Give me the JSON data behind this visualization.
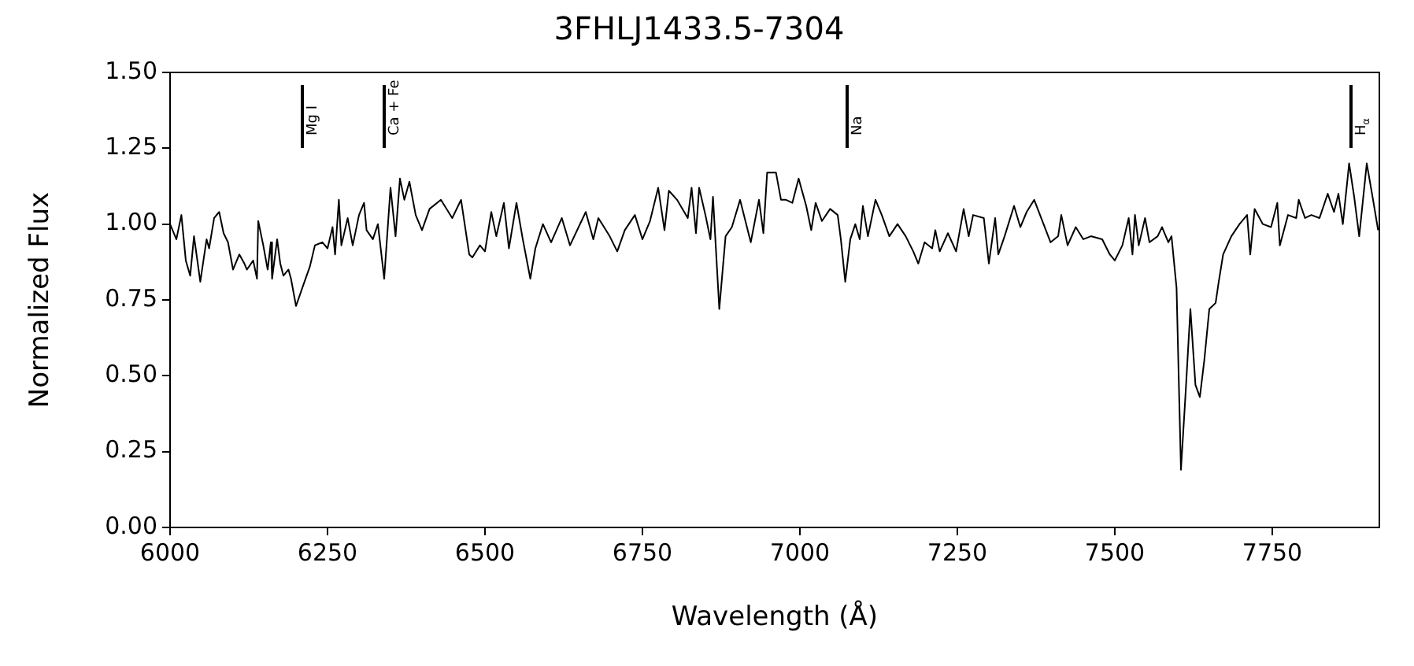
{
  "chart_data": {
    "type": "line",
    "title": "3FHLJ1433.5-7304",
    "xlabel": "Wavelength (Å)",
    "ylabel": "Normalized Flux",
    "xlim": [
      6000,
      7920
    ],
    "xticks": [
      6000,
      6250,
      6500,
      6750,
      7000,
      7250,
      7500,
      7750
    ],
    "ylim": [
      0,
      1.5
    ],
    "yticks": [
      {
        "value": 0,
        "label": "0.00"
      },
      {
        "value": 0.25,
        "label": "0.25"
      },
      {
        "value": 0.5,
        "label": "0.50"
      },
      {
        "value": 0.75,
        "label": "0.75"
      },
      {
        "value": 1,
        "label": "1.00"
      },
      {
        "value": 1.25,
        "label": "1.25"
      },
      {
        "value": 1.5,
        "label": "1.50"
      }
    ],
    "grid": false,
    "legend": false,
    "marker": "none",
    "line_style": "solid",
    "ref_lines": [
      {
        "axis": "x",
        "value": 6210,
        "label": "Mg I"
      },
      {
        "axis": "x",
        "value": 6340,
        "label": "Ca + Fe"
      },
      {
        "axis": "x",
        "value": 7075,
        "label": "Na"
      },
      {
        "axis": "x",
        "value": 7875,
        "label": "H$_{α}$"
      }
    ],
    "series": [
      {
        "color": "#000000",
        "x": [
          6000,
          6010,
          6018,
          6025,
          6032,
          6038,
          6048,
          6058,
          6062,
          6070,
          6078,
          6085,
          6092,
          6100,
          6110,
          6118,
          6122,
          6132,
          6138,
          6140,
          6148,
          6155,
          6160,
          6162,
          6170,
          6175,
          6180,
          6188,
          6192,
          6200,
          6210,
          6222,
          6230,
          6242,
          6250,
          6258,
          6262,
          6268,
          6272,
          6282,
          6290,
          6300,
          6308,
          6312,
          6322,
          6330,
          6340,
          6350,
          6358,
          6365,
          6372,
          6380,
          6390,
          6400,
          6412,
          6430,
          6448,
          6462,
          6475,
          6480,
          6492,
          6500,
          6510,
          6518,
          6530,
          6538,
          6550,
          6560,
          6572,
          6580,
          6592,
          6605,
          6622,
          6635,
          6660,
          6672,
          6680,
          6698,
          6710,
          6722,
          6738,
          6750,
          6762,
          6775,
          6785,
          6792,
          6805,
          6822,
          6828,
          6835,
          6840,
          6850,
          6858,
          6862,
          6872,
          6882,
          6892,
          6905,
          6922,
          6935,
          6942,
          6948,
          6962,
          6970,
          6978,
          6988,
          6998,
          7010,
          7018,
          7025,
          7035,
          7048,
          7060,
          7065,
          7072,
          7080,
          7088,
          7095,
          7100,
          7108,
          7120,
          7130,
          7142,
          7155,
          7168,
          7180,
          7188,
          7198,
          7210,
          7215,
          7222,
          7235,
          7248,
          7260,
          7268,
          7275,
          7292,
          7300,
          7310,
          7315,
          7325,
          7340,
          7350,
          7360,
          7372,
          7385,
          7398,
          7410,
          7415,
          7425,
          7438,
          7450,
          7462,
          7480,
          7492,
          7500,
          7512,
          7522,
          7528,
          7532,
          7538,
          7548,
          7555,
          7568,
          7575,
          7585,
          7590,
          7598,
          7605,
          7612,
          7620,
          7628,
          7635,
          7642,
          7650,
          7660,
          7665,
          7672,
          7685,
          7698,
          7710,
          7715,
          7722,
          7735,
          7748,
          7758,
          7762,
          7775,
          7788,
          7792,
          7802,
          7812,
          7825,
          7838,
          7848,
          7855,
          7862,
          7872,
          7880,
          7888,
          7900,
          7910,
          7918
        ],
        "values": [
          1.0,
          0.95,
          1.03,
          0.88,
          0.83,
          0.96,
          0.81,
          0.95,
          0.92,
          1.02,
          1.04,
          0.97,
          0.94,
          0.85,
          0.9,
          0.87,
          0.85,
          0.88,
          0.82,
          1.01,
          0.93,
          0.85,
          0.94,
          0.82,
          0.95,
          0.87,
          0.83,
          0.85,
          0.82,
          0.73,
          0.79,
          0.86,
          0.93,
          0.94,
          0.92,
          0.99,
          0.9,
          1.08,
          0.93,
          1.02,
          0.93,
          1.03,
          1.07,
          0.98,
          0.95,
          1.0,
          0.82,
          1.12,
          0.96,
          1.15,
          1.08,
          1.14,
          1.03,
          0.98,
          1.05,
          1.08,
          1.02,
          1.08,
          0.9,
          0.89,
          0.93,
          0.91,
          1.04,
          0.96,
          1.07,
          0.92,
          1.07,
          0.95,
          0.82,
          0.92,
          1.0,
          0.94,
          1.02,
          0.93,
          1.04,
          0.95,
          1.02,
          0.96,
          0.91,
          0.98,
          1.03,
          0.95,
          1.01,
          1.12,
          0.98,
          1.11,
          1.08,
          1.02,
          1.12,
          0.97,
          1.12,
          1.03,
          0.95,
          1.09,
          0.72,
          0.96,
          0.99,
          1.08,
          0.94,
          1.08,
          0.97,
          1.17,
          1.17,
          1.08,
          1.08,
          1.07,
          1.15,
          1.06,
          0.98,
          1.07,
          1.01,
          1.05,
          1.03,
          0.95,
          0.81,
          0.95,
          1.0,
          0.95,
          1.06,
          0.96,
          1.08,
          1.03,
          0.96,
          1.0,
          0.96,
          0.91,
          0.87,
          0.94,
          0.92,
          0.98,
          0.91,
          0.97,
          0.91,
          1.05,
          0.96,
          1.03,
          1.02,
          0.87,
          1.02,
          0.9,
          0.96,
          1.06,
          0.99,
          1.04,
          1.08,
          1.01,
          0.94,
          0.96,
          1.03,
          0.93,
          0.99,
          0.95,
          0.96,
          0.95,
          0.9,
          0.88,
          0.93,
          1.02,
          0.9,
          1.03,
          0.93,
          1.02,
          0.94,
          0.96,
          0.99,
          0.94,
          0.96,
          0.79,
          0.19,
          0.43,
          0.72,
          0.47,
          0.43,
          0.55,
          0.72,
          0.74,
          0.81,
          0.9,
          0.96,
          1.0,
          1.03,
          0.9,
          1.05,
          1.0,
          0.99,
          1.07,
          0.93,
          1.03,
          1.02,
          1.08,
          1.02,
          1.03,
          1.02,
          1.1,
          1.04,
          1.1,
          1.0,
          1.2,
          1.09,
          0.96,
          1.2,
          1.08,
          0.98
        ]
      }
    ]
  }
}
